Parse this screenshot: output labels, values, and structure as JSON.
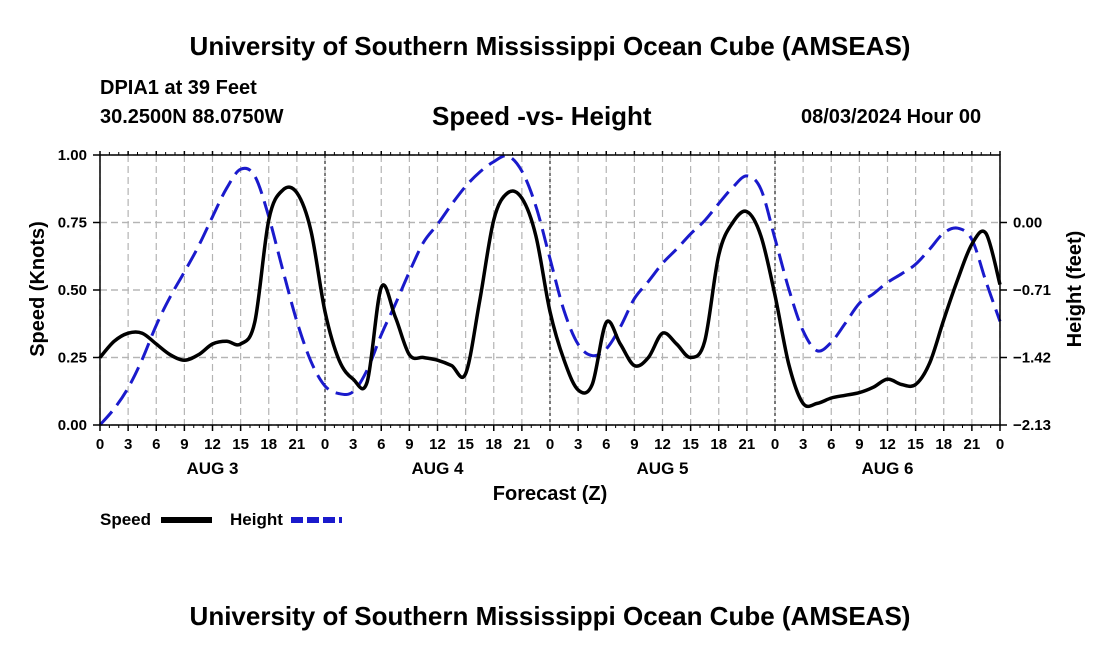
{
  "header": {
    "title": "University of Southern Mississippi Ocean Cube (AMSEAS)",
    "station": "DPIA1 at 39 Feet",
    "coords": "30.2500N  88.0750W",
    "chart_title": "Speed -vs- Height",
    "datetime": "08/03/2024 Hour 00"
  },
  "footer": {
    "title": "University of Southern Mississippi Ocean Cube (AMSEAS)"
  },
  "colors": {
    "speed": "#000000",
    "height": "#1a1acc",
    "grid": "#b4b4b4"
  },
  "chart_data": {
    "type": "line",
    "title": "Speed -vs- Height",
    "xlabel": "Forecast (Z)",
    "ylabel_left": "Speed (Knots)",
    "ylabel_right": "Height (feet)",
    "x_unit": "hours from 08/03/2024 00Z",
    "xlim": [
      0,
      96
    ],
    "x_tick_values": [
      0,
      3,
      6,
      9,
      12,
      15,
      18,
      21,
      24,
      27,
      30,
      33,
      36,
      39,
      42,
      45,
      48,
      51,
      54,
      57,
      60,
      63,
      66,
      69,
      72,
      75,
      78,
      81,
      84,
      87,
      90,
      93,
      96
    ],
    "x_tick_labels": [
      "0",
      "3",
      "6",
      "9",
      "12",
      "15",
      "18",
      "21",
      "0",
      "3",
      "6",
      "9",
      "12",
      "15",
      "18",
      "21",
      "0",
      "3",
      "6",
      "9",
      "12",
      "15",
      "18",
      "21",
      "0",
      "3",
      "6",
      "9",
      "12",
      "15",
      "18",
      "21",
      "0"
    ],
    "day_labels": [
      {
        "label": "AUG 3",
        "x": 12
      },
      {
        "label": "AUG 4",
        "x": 36
      },
      {
        "label": "AUG 5",
        "x": 60
      },
      {
        "label": "AUG 6",
        "x": 84
      }
    ],
    "left_axis": {
      "ylim": [
        0,
        1.0
      ],
      "ticks": [
        0,
        0.25,
        0.5,
        0.75,
        1.0
      ],
      "tick_labels": [
        "0.00",
        "0.25",
        "0.50",
        "0.75",
        "1.00"
      ]
    },
    "right_axis": {
      "ylim": [
        -2.13,
        0.71
      ],
      "ticks": [
        -2.13,
        -1.42,
        -0.71,
        0.0
      ],
      "tick_labels": [
        "−2.13",
        "−1.42",
        "−0.71",
        "0.00"
      ]
    },
    "grid": true,
    "legend": {
      "position": "bottom-left",
      "entries": [
        {
          "name": "Speed",
          "style": "solid"
        },
        {
          "name": "Height",
          "style": "dashed"
        }
      ]
    },
    "series": [
      {
        "name": "Speed",
        "axis": "left",
        "style": "solid",
        "x": [
          0,
          1.5,
          3,
          4.5,
          6,
          7.5,
          9,
          10.5,
          12,
          13.5,
          15,
          16.5,
          18,
          19.5,
          21,
          22.5,
          24,
          25.5,
          27,
          28.5,
          30,
          31.5,
          33,
          34.5,
          36,
          37.5,
          39,
          40.5,
          42,
          43.5,
          45,
          46.5,
          48,
          49.5,
          51,
          52.5,
          54,
          55.5,
          57,
          58.5,
          60,
          61.5,
          63,
          64.5,
          66,
          67.5,
          69,
          70.5,
          72,
          73.5,
          75,
          76.5,
          78,
          79.5,
          81,
          82.5,
          84,
          85.5,
          87,
          88.5,
          90,
          91.5,
          93,
          94.5,
          96
        ],
        "values": [
          0.25,
          0.31,
          0.34,
          0.34,
          0.3,
          0.26,
          0.24,
          0.26,
          0.3,
          0.31,
          0.3,
          0.38,
          0.76,
          0.87,
          0.86,
          0.72,
          0.42,
          0.24,
          0.17,
          0.16,
          0.51,
          0.4,
          0.26,
          0.25,
          0.24,
          0.22,
          0.19,
          0.46,
          0.76,
          0.86,
          0.84,
          0.7,
          0.42,
          0.24,
          0.13,
          0.15,
          0.38,
          0.3,
          0.22,
          0.25,
          0.34,
          0.3,
          0.25,
          0.31,
          0.63,
          0.75,
          0.79,
          0.7,
          0.48,
          0.22,
          0.08,
          0.08,
          0.1,
          0.11,
          0.12,
          0.14,
          0.17,
          0.15,
          0.15,
          0.23,
          0.39,
          0.54,
          0.67,
          0.71,
          0.52
        ]
      },
      {
        "name": "Height",
        "axis": "right",
        "style": "dashed",
        "x": [
          0,
          1.5,
          3,
          4.5,
          6,
          7.5,
          9,
          10.5,
          12,
          13.5,
          15,
          16.5,
          18,
          19.5,
          21,
          22.5,
          24,
          25.5,
          27,
          28.5,
          30,
          31.5,
          33,
          34.5,
          36,
          37.5,
          39,
          40.5,
          42,
          43.5,
          45,
          46.5,
          48,
          49.5,
          51,
          52.5,
          54,
          55.5,
          57,
          58.5,
          60,
          61.5,
          63,
          64.5,
          66,
          67.5,
          69,
          70.5,
          72,
          73.5,
          75,
          76.5,
          78,
          79.5,
          81,
          82.5,
          84,
          85.5,
          87,
          88.5,
          90,
          91.5,
          93,
          94.5,
          96
        ],
        "values": [
          -2.13,
          -1.96,
          -1.74,
          -1.44,
          -1.08,
          -0.78,
          -0.52,
          -0.25,
          0.06,
          0.36,
          0.56,
          0.49,
          0.06,
          -0.5,
          -1.04,
          -1.46,
          -1.72,
          -1.8,
          -1.78,
          -1.55,
          -1.18,
          -0.86,
          -0.52,
          -0.21,
          -0.02,
          0.19,
          0.38,
          0.53,
          0.64,
          0.7,
          0.54,
          0.17,
          -0.38,
          -0.93,
          -1.28,
          -1.4,
          -1.33,
          -1.1,
          -0.8,
          -0.62,
          -0.43,
          -0.28,
          -0.12,
          0.02,
          0.2,
          0.37,
          0.49,
          0.35,
          -0.17,
          -0.71,
          -1.14,
          -1.35,
          -1.26,
          -1.06,
          -0.85,
          -0.75,
          -0.63,
          -0.54,
          -0.44,
          -0.28,
          -0.11,
          -0.06,
          -0.18,
          -0.62,
          -1.04
        ]
      }
    ]
  }
}
